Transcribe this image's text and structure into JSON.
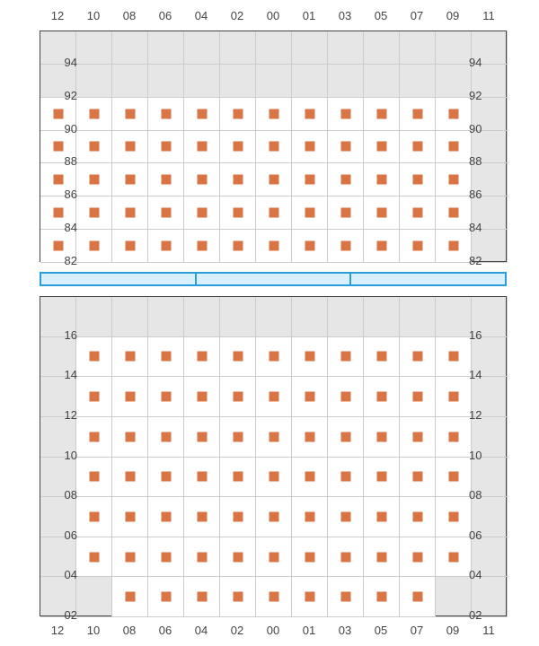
{
  "layout": {
    "x_labels": [
      "12",
      "10",
      "08",
      "06",
      "04",
      "02",
      "00",
      "01",
      "03",
      "05",
      "07",
      "09",
      "11"
    ],
    "cols": 13,
    "colors": {
      "background": "#ffffff",
      "grid_bg": "#e6e6e6",
      "cell_filled": "#ffffff",
      "gridline": "#cccccc",
      "border": "#444444",
      "marker": "#d97544",
      "label": "#444444",
      "sep_fill": "#d9f0ff",
      "sep_border": "#289fd8"
    },
    "label_fontsize": 13,
    "marker_size": 11,
    "separator_segments": 3
  },
  "top_panel": {
    "y_labels": [
      "94",
      "92",
      "90",
      "88",
      "86",
      "84",
      "82"
    ],
    "rows": 7,
    "filled": [
      [
        0,
        0,
        0,
        0,
        0,
        0,
        0,
        0,
        0,
        0,
        0,
        0,
        0
      ],
      [
        0,
        0,
        0,
        0,
        0,
        0,
        0,
        0,
        0,
        0,
        0,
        0,
        0
      ],
      [
        1,
        1,
        1,
        1,
        1,
        1,
        1,
        1,
        1,
        1,
        1,
        1,
        0
      ],
      [
        1,
        1,
        1,
        1,
        1,
        1,
        1,
        1,
        1,
        1,
        1,
        1,
        0
      ],
      [
        1,
        1,
        1,
        1,
        1,
        1,
        1,
        1,
        1,
        1,
        1,
        1,
        0
      ],
      [
        1,
        1,
        1,
        1,
        1,
        1,
        1,
        1,
        1,
        1,
        1,
        1,
        0
      ],
      [
        1,
        1,
        1,
        1,
        1,
        1,
        1,
        1,
        1,
        1,
        1,
        1,
        0
      ]
    ]
  },
  "bottom_panel": {
    "y_labels": [
      "16",
      "14",
      "12",
      "10",
      "08",
      "06",
      "04",
      "02"
    ],
    "rows": 8,
    "filled": [
      [
        0,
        0,
        0,
        0,
        0,
        0,
        0,
        0,
        0,
        0,
        0,
        0,
        0
      ],
      [
        0,
        1,
        1,
        1,
        1,
        1,
        1,
        1,
        1,
        1,
        1,
        1,
        0
      ],
      [
        0,
        1,
        1,
        1,
        1,
        1,
        1,
        1,
        1,
        1,
        1,
        1,
        0
      ],
      [
        0,
        1,
        1,
        1,
        1,
        1,
        1,
        1,
        1,
        1,
        1,
        1,
        0
      ],
      [
        0,
        1,
        1,
        1,
        1,
        1,
        1,
        1,
        1,
        1,
        1,
        1,
        0
      ],
      [
        0,
        1,
        1,
        1,
        1,
        1,
        1,
        1,
        1,
        1,
        1,
        1,
        0
      ],
      [
        0,
        1,
        1,
        1,
        1,
        1,
        1,
        1,
        1,
        1,
        1,
        1,
        0
      ],
      [
        0,
        0,
        1,
        1,
        1,
        1,
        1,
        1,
        1,
        1,
        1,
        0,
        0
      ]
    ]
  }
}
